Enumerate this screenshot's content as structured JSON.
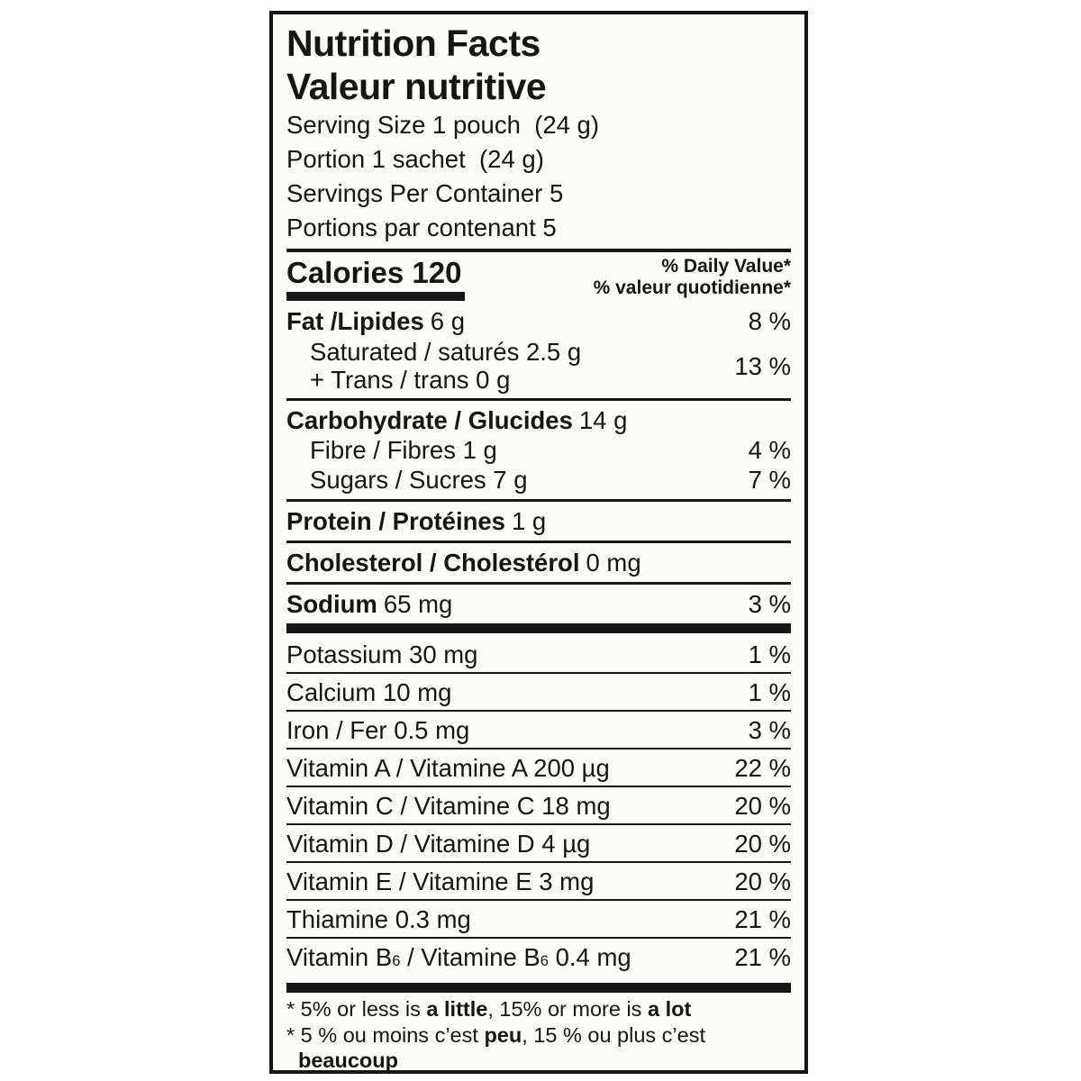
{
  "label": {
    "title_en": "Nutrition Facts",
    "title_fr": "Valeur nutritive",
    "serving": {
      "size_en": "Serving Size 1 pouch  (24 g)",
      "size_fr": "Portion 1 sachet  (24 g)",
      "per_container_en": "Servings Per Container 5",
      "per_container_fr": "Portions par contenant 5"
    },
    "calories_label": "Calories 120",
    "dv_header_en": "% Daily Value*",
    "dv_header_fr": "% valeur quotidienne*",
    "fat": {
      "name": "Fat /Lipides",
      "amount": "6 g",
      "percent": "8 %"
    },
    "sat_trans": {
      "line1": "Saturated / saturés 2.5 g",
      "line2": "+ Trans / trans 0 g",
      "percent": "13 %"
    },
    "carbohydrate": {
      "name": "Carbohydrate / Glucides",
      "amount": "14 g"
    },
    "fibre": {
      "name": "Fibre / Fibres 1 g",
      "percent": "4 %"
    },
    "sugars": {
      "name": "Sugars / Sucres 7 g",
      "percent": "7 %"
    },
    "protein": {
      "name": "Protein / Protéines",
      "amount": "1 g"
    },
    "cholesterol": {
      "name": "Cholesterol / Cholestérol",
      "amount": "0 mg"
    },
    "sodium": {
      "name": "Sodium",
      "amount": "65 mg",
      "percent": "3 %"
    },
    "micronutrients": [
      {
        "name": "Potassium 30 mg",
        "percent": "1 %"
      },
      {
        "name": "Calcium 10 mg",
        "percent": "1 %"
      },
      {
        "name": "Iron / Fer 0.5 mg",
        "percent": "3 %"
      },
      {
        "name": "Vitamin A / Vitamine A 200 µg",
        "percent": "22 %"
      },
      {
        "name": "Vitamin C / Vitamine C 18 mg",
        "percent": "20 %"
      },
      {
        "name": "Vitamin D / Vitamine D 4 µg",
        "percent": "20 %"
      },
      {
        "name": "Vitamin E / Vitamine E 3 mg",
        "percent": "20 %"
      },
      {
        "name": "Thiamine 0.3 mg",
        "percent": "21 %"
      }
    ],
    "vitamin_b6": {
      "pre": "Vitamin B",
      "sub1": "6",
      "mid": " / Vitamine B",
      "sub2": "6",
      "post": " 0.4 mg",
      "percent": "21 %"
    },
    "footnote_en": {
      "pre": "* 5% or less is ",
      "bold1": "a little",
      "mid": ", 15% or more is ",
      "bold2": "a lot"
    },
    "footnote_fr": {
      "pre": "* 5 % ou moins c’est ",
      "bold1": "peu",
      "mid": ", 15 % ou plus c’est",
      "bold2": "beaucoup"
    }
  }
}
